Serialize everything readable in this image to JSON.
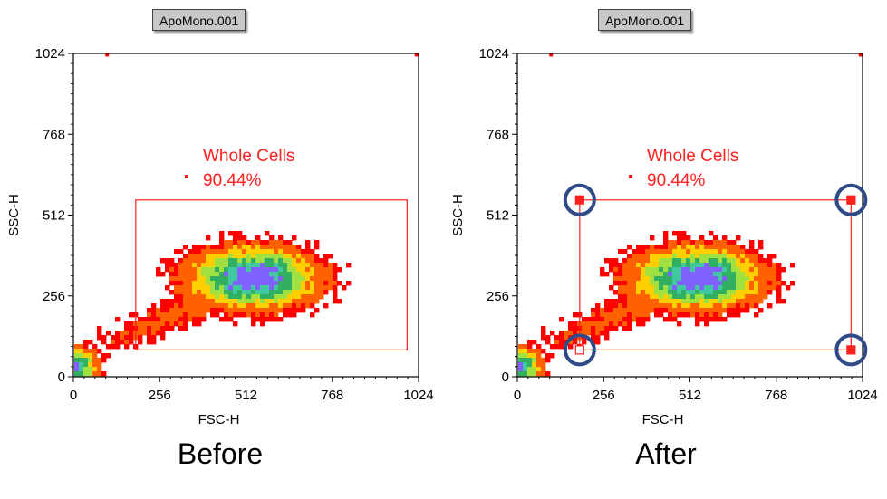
{
  "colors": {
    "gate": "#ff2020",
    "handle_ring": "#2f4a86",
    "axis": "#000000"
  },
  "panels": [
    {
      "caption": "Before",
      "sample_name": "ApoMono.001",
      "show_handles": false
    },
    {
      "caption": "After",
      "sample_name": "ApoMono.001",
      "show_handles": true
    }
  ],
  "chart_data": {
    "type": "heatmap",
    "plot_style": "density dot plot",
    "xlabel": "FSC-H",
    "ylabel": "SSC-H",
    "xlim": [
      0,
      1024
    ],
    "ylim": [
      0,
      1024
    ],
    "x_ticks": [
      "0",
      "256",
      "512",
      "768",
      "1024"
    ],
    "y_ticks": [
      "0",
      "256",
      "512",
      "768",
      "1024"
    ],
    "colormap": [
      "#ff0000",
      "#ff6000",
      "#ffd000",
      "#a0e040",
      "#30b060",
      "#40c8a0",
      "#8060ff"
    ],
    "density_peak": {
      "x": 525,
      "y": 320
    },
    "gate": {
      "name": "Whole Cells",
      "percent": "90.44%",
      "shape": "rectangle",
      "x_range": [
        185,
        990
      ],
      "y_range": [
        85,
        560
      ]
    }
  }
}
